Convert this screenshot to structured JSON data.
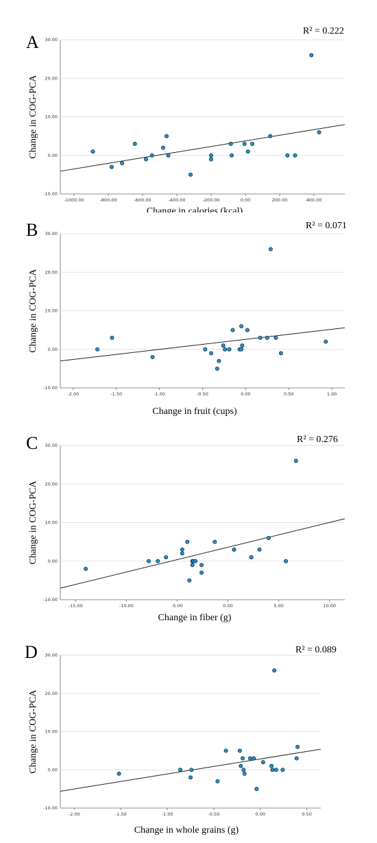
{
  "chart_data": [
    {
      "type": "scatter",
      "panel_letter": "A",
      "r2_label": "R² = 0.222",
      "xlabel": "Change in calories (kcal)",
      "ylabel": "Change in COG-PCA",
      "xlim": [
        -1080,
        580
      ],
      "ylim": [
        -10,
        30
      ],
      "xticks": [
        -1000,
        -800,
        -600,
        -400,
        -200,
        0,
        200,
        400
      ],
      "xtick_labels": [
        "-1000.00",
        "-800.00",
        "-600.00",
        "-400.00",
        "-200.00",
        "0.00",
        "200.00",
        "400.00"
      ],
      "yticks": [
        -10,
        0,
        10,
        20,
        30
      ],
      "ytick_labels": [
        "-10.00",
        "0.00",
        "10.00",
        "20.00",
        "30.00"
      ],
      "points": [
        {
          "x": -890,
          "y": 1
        },
        {
          "x": -780,
          "y": -3
        },
        {
          "x": -720,
          "y": -2
        },
        {
          "x": -645,
          "y": 3
        },
        {
          "x": -580,
          "y": -1
        },
        {
          "x": -545,
          "y": 0
        },
        {
          "x": -480,
          "y": 2
        },
        {
          "x": -460,
          "y": 5
        },
        {
          "x": -450,
          "y": 0
        },
        {
          "x": -320,
          "y": -5
        },
        {
          "x": -200,
          "y": 0
        },
        {
          "x": -200,
          "y": -1
        },
        {
          "x": -85,
          "y": 3
        },
        {
          "x": -80,
          "y": 0
        },
        {
          "x": -5,
          "y": 3
        },
        {
          "x": 15,
          "y": 1
        },
        {
          "x": 40,
          "y": 3
        },
        {
          "x": 145,
          "y": 5
        },
        {
          "x": 245,
          "y": 0
        },
        {
          "x": 290,
          "y": 0
        },
        {
          "x": 385,
          "y": 26
        },
        {
          "x": 430,
          "y": 6
        }
      ],
      "fit_line": {
        "x": [
          -1080,
          580
        ],
        "y": [
          -4.1,
          8.0
        ]
      }
    },
    {
      "type": "scatter",
      "panel_letter": "B",
      "r2_label": "R² = 0.071",
      "xlabel": "Change in fruit (cups)",
      "ylabel": "Change in COG-PCA",
      "xlim": [
        -2.15,
        1.15
      ],
      "ylim": [
        -10,
        30
      ],
      "xticks": [
        -2,
        -1.5,
        -1,
        -0.5,
        0,
        0.5,
        1
      ],
      "xtick_labels": [
        "-2.00",
        "-1.50",
        "-1.00",
        "-0.50",
        "0.00",
        "0.50",
        "1.00"
      ],
      "yticks": [
        -10,
        0,
        10,
        20,
        30
      ],
      "ytick_labels": [
        "-10.00",
        "0.00",
        "10.00",
        "20.00",
        "30.00"
      ],
      "points": [
        {
          "x": -1.72,
          "y": 0
        },
        {
          "x": -1.55,
          "y": 3
        },
        {
          "x": -1.08,
          "y": -2
        },
        {
          "x": -0.47,
          "y": 0
        },
        {
          "x": -0.4,
          "y": -1
        },
        {
          "x": -0.33,
          "y": -5
        },
        {
          "x": -0.31,
          "y": -3
        },
        {
          "x": -0.26,
          "y": 1
        },
        {
          "x": -0.24,
          "y": 0
        },
        {
          "x": -0.19,
          "y": 0
        },
        {
          "x": -0.15,
          "y": 5
        },
        {
          "x": -0.07,
          "y": 0
        },
        {
          "x": -0.05,
          "y": 6
        },
        {
          "x": -0.05,
          "y": 0
        },
        {
          "x": -0.04,
          "y": 1
        },
        {
          "x": 0.02,
          "y": 5
        },
        {
          "x": 0.17,
          "y": 3
        },
        {
          "x": 0.25,
          "y": 3
        },
        {
          "x": 0.29,
          "y": 26
        },
        {
          "x": 0.35,
          "y": 3
        },
        {
          "x": 0.41,
          "y": -1
        },
        {
          "x": 0.93,
          "y": 2
        }
      ],
      "fit_line": {
        "x": [
          -2.15,
          1.15
        ],
        "y": [
          -3.0,
          5.6
        ]
      }
    },
    {
      "type": "scatter",
      "panel_letter": "C",
      "r2_label": "R² = 0.276",
      "xlabel": "Change in fiber (g)",
      "ylabel": "Change in COG-PCA",
      "xlim": [
        -16.5,
        11.5
      ],
      "ylim": [
        -10,
        30
      ],
      "xticks": [
        -15,
        -10,
        -5,
        0,
        5,
        10
      ],
      "xtick_labels": [
        "-15.00",
        "-10.00",
        "-5.00",
        "0.00",
        "5.00",
        "10.00"
      ],
      "yticks": [
        -10,
        0,
        10,
        20,
        30
      ],
      "ytick_labels": [
        "-10.00",
        "0.00",
        "10.00",
        "20.00",
        "30.00"
      ],
      "points": [
        {
          "x": -14.0,
          "y": -2
        },
        {
          "x": -7.8,
          "y": 0
        },
        {
          "x": -6.9,
          "y": 0
        },
        {
          "x": -6.1,
          "y": 1
        },
        {
          "x": -4.5,
          "y": 2
        },
        {
          "x": -4.5,
          "y": 3
        },
        {
          "x": -4.0,
          "y": 5
        },
        {
          "x": -3.8,
          "y": -5
        },
        {
          "x": -3.5,
          "y": 0
        },
        {
          "x": -3.4,
          "y": 0
        },
        {
          "x": -3.5,
          "y": -1
        },
        {
          "x": -3.2,
          "y": 0
        },
        {
          "x": -2.6,
          "y": -1
        },
        {
          "x": -2.6,
          "y": -3
        },
        {
          "x": -1.3,
          "y": 5
        },
        {
          "x": 0.6,
          "y": 3
        },
        {
          "x": 0.6,
          "y": 3
        },
        {
          "x": 2.3,
          "y": 1
        },
        {
          "x": 3.1,
          "y": 3
        },
        {
          "x": 4.0,
          "y": 6
        },
        {
          "x": 5.7,
          "y": 0
        },
        {
          "x": 6.7,
          "y": 26
        }
      ],
      "fit_line": {
        "x": [
          -16.5,
          11.5
        ],
        "y": [
          -7.0,
          11.0
        ]
      }
    },
    {
      "type": "scatter",
      "panel_letter": "D",
      "r2_label": "R² = 0.089",
      "xlabel": "Change in whole grains (g)",
      "ylabel": "Change in COG-PCA",
      "xlim": [
        -2.15,
        0.65
      ],
      "ylim": [
        -10,
        30
      ],
      "xticks": [
        -2,
        -1.5,
        -1,
        -0.5,
        0,
        0.5
      ],
      "xtick_labels": [
        "-2.00",
        "-1.50",
        "-1.00",
        "-0.50",
        "0.00",
        "0.50"
      ],
      "yticks": [
        -10,
        0,
        10,
        20,
        30
      ],
      "ytick_labels": [
        "-10.00",
        "0.00",
        "10.00",
        "20.00",
        "30.00"
      ],
      "points": [
        {
          "x": -1.52,
          "y": -1
        },
        {
          "x": -0.86,
          "y": 0
        },
        {
          "x": -0.75,
          "y": -2
        },
        {
          "x": -0.74,
          "y": 0
        },
        {
          "x": -0.46,
          "y": -3
        },
        {
          "x": -0.37,
          "y": 5
        },
        {
          "x": -0.22,
          "y": 5
        },
        {
          "x": -0.21,
          "y": 1
        },
        {
          "x": -0.19,
          "y": 3
        },
        {
          "x": -0.18,
          "y": 0
        },
        {
          "x": -0.17,
          "y": -1
        },
        {
          "x": -0.11,
          "y": 3
        },
        {
          "x": -0.07,
          "y": 3
        },
        {
          "x": -0.04,
          "y": -5
        },
        {
          "x": 0.03,
          "y": 2
        },
        {
          "x": 0.12,
          "y": 1
        },
        {
          "x": 0.13,
          "y": 0
        },
        {
          "x": 0.15,
          "y": 26
        },
        {
          "x": 0.17,
          "y": 0
        },
        {
          "x": 0.24,
          "y": 0
        },
        {
          "x": 0.39,
          "y": 3
        },
        {
          "x": 0.4,
          "y": 6
        }
      ],
      "fit_line": {
        "x": [
          -2.15,
          0.65
        ],
        "y": [
          -5.6,
          5.4
        ]
      }
    }
  ]
}
